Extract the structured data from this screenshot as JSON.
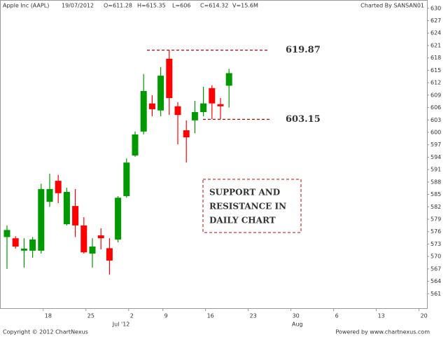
{
  "chart_data": {
    "type": "candlestick",
    "header": [
      "Apple Inc (AAPL)",
      "19/07/2012",
      "O=611.28",
      "H=615.35",
      "L=606",
      "C=614.32",
      "V=15.6M"
    ],
    "credit": "Charted By SANSAN01",
    "footer_left": "Copyright © 2012 ChartNexus",
    "footer_right": "Powered by www.chartnexus.com",
    "categories": [
      null,
      null,
      null,
      null,
      "18",
      null,
      null,
      null,
      null,
      "25",
      null,
      null,
      null,
      null,
      "2",
      null,
      null,
      null,
      "9",
      null,
      null,
      null,
      null,
      "16",
      null,
      null,
      null,
      null,
      "23",
      null,
      null,
      null,
      null,
      "30",
      null,
      null,
      null,
      null,
      "6",
      null,
      null,
      null,
      null,
      "13",
      null,
      null,
      null,
      null,
      "20",
      null
    ],
    "month_labels": [
      null,
      null,
      null,
      null,
      null,
      null,
      null,
      null,
      null,
      null,
      null,
      null,
      null,
      null,
      "Jul '12",
      null,
      null,
      null,
      null,
      null,
      null,
      null,
      null,
      null,
      null,
      null,
      null,
      null,
      null,
      null,
      null,
      null,
      null,
      null,
      null,
      "Aug",
      null,
      null,
      null,
      null,
      null,
      null,
      null,
      null,
      null,
      null,
      null,
      null,
      null,
      null
    ],
    "open": [
      574.7,
      574.4,
      571.4,
      571.4,
      571.4,
      583.2,
      588.3,
      577.8,
      582.2,
      577.5,
      570.7,
      575.1,
      572.0,
      574.1,
      584.6,
      594.4,
      600.2,
      607.0,
      605.3,
      617.8,
      606.3,
      600.5,
      602.9,
      604.9,
      610.7,
      606.8,
      611.28,
      null,
      null,
      null,
      null,
      null,
      null,
      null,
      null,
      null,
      null,
      null,
      null,
      null,
      null,
      null,
      null,
      null,
      null,
      null,
      null,
      null,
      null,
      null
    ],
    "high": [
      577.5,
      574.9,
      574.4,
      574.7,
      587.6,
      590.0,
      589.7,
      586.6,
      586.3,
      579.5,
      574.4,
      576.8,
      574.4,
      584.6,
      593.7,
      600.2,
      614.1,
      609.0,
      615.8,
      619.87,
      607.3,
      602.9,
      607.6,
      611.0,
      611.4,
      608.3,
      615.35,
      null,
      null,
      null,
      null,
      null,
      null,
      null,
      null,
      null,
      null,
      null,
      null,
      null,
      null,
      null,
      null,
      null,
      null,
      null,
      null,
      null,
      null,
      null
    ],
    "low": [
      567.0,
      571.9,
      567.3,
      569.7,
      570.7,
      582.0,
      582.9,
      577.5,
      574.7,
      570.7,
      567.3,
      571.7,
      565.6,
      573.4,
      584.2,
      594.1,
      599.5,
      603.9,
      603.9,
      604.2,
      597.1,
      592.7,
      599.8,
      603.9,
      603.2,
      603.2,
      606,
      null,
      null,
      null,
      null,
      null,
      null,
      null,
      null,
      null,
      null,
      null,
      null,
      null,
      null,
      null,
      null,
      null,
      null,
      null,
      null,
      null,
      null,
      null
    ],
    "close": [
      576.4,
      572.4,
      571.9,
      574.1,
      586.3,
      586.3,
      585.3,
      585.6,
      577.5,
      571.0,
      572.4,
      574.4,
      569.0,
      584.2,
      592.7,
      599.5,
      610.0,
      605.6,
      613.7,
      608.3,
      604.2,
      598.8,
      604.9,
      607.0,
      607.0,
      606.3,
      614.32,
      null,
      null,
      null,
      null,
      null,
      null,
      null,
      null,
      null,
      null,
      null,
      null,
      null,
      null,
      null,
      null,
      null,
      null,
      null,
      null,
      null,
      null,
      null
    ],
    "up_color": "#009900",
    "down_color": "#ff0000",
    "ylim": [
      557.5,
      632
    ],
    "yticks": [
      561,
      564,
      567,
      570,
      573,
      576,
      579,
      582,
      585,
      588,
      591,
      594,
      597,
      600,
      603,
      606,
      609,
      612,
      615,
      618,
      621,
      624,
      627,
      630
    ],
    "levels": [
      {
        "value": 619.87,
        "color": "#cc0000"
      },
      {
        "value": 603.15,
        "color": "#cc0000"
      }
    ],
    "note_lines": [
      "SUPPORT AND",
      "RESISTANCE IN",
      "DAILY CHART"
    ]
  }
}
